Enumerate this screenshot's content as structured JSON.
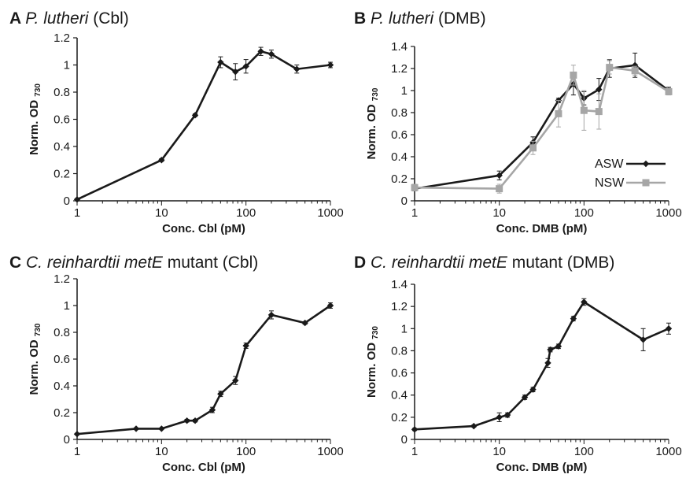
{
  "colors": {
    "asw": "#1a1a1a",
    "nsw": "#a6a6a6",
    "axis": "#1a1a1a"
  },
  "chart_data": [
    {
      "panel_letter": "A",
      "title_parts": [
        {
          "text": "P. lutheri",
          "italic": true
        },
        {
          "text": " (Cbl)",
          "italic": false
        }
      ],
      "type": "line",
      "xscale": "log",
      "xlabel": "Conc. Cbl (pM)",
      "ylabel_main": "Norm. OD",
      "ylabel_sub": "730",
      "xlim": [
        1,
        1000
      ],
      "ylim": [
        0,
        1.2
      ],
      "yticks": [
        "0",
        "0.2",
        "0.4",
        "0.6",
        "0.8",
        "1",
        "1.2"
      ],
      "xticks": [
        "1",
        "10",
        "100",
        "1000"
      ],
      "series": [
        {
          "color_key": "asw",
          "marker": "diamond",
          "x": [
            1,
            10,
            25,
            50,
            75,
            100,
            150,
            200,
            400,
            1000
          ],
          "y": [
            0.01,
            0.3,
            0.63,
            1.02,
            0.95,
            0.99,
            1.1,
            1.08,
            0.97,
            1.0
          ],
          "err": [
            0.005,
            0.01,
            0.01,
            0.04,
            0.06,
            0.05,
            0.03,
            0.03,
            0.03,
            0.02
          ]
        }
      ]
    },
    {
      "panel_letter": "B",
      "title_parts": [
        {
          "text": "P. lutheri",
          "italic": true
        },
        {
          "text": "  (DMB)",
          "italic": false
        }
      ],
      "type": "line",
      "xscale": "log",
      "xlabel": "Conc. DMB (pM)",
      "ylabel_main": "Norm. OD",
      "ylabel_sub": "730",
      "xlim": [
        1,
        1000
      ],
      "ylim": [
        0,
        1.4
      ],
      "yticks": [
        "0",
        "0.2",
        "0.4",
        "0.6",
        "0.8",
        "1",
        "1.2",
        "1.4"
      ],
      "xticks": [
        "1",
        "10",
        "100",
        "1000"
      ],
      "legend": {
        "position": "lower-right"
      },
      "series": [
        {
          "name": "ASW",
          "color_key": "asw",
          "marker": "diamond",
          "x": [
            1,
            10,
            25,
            50,
            75,
            100,
            150,
            200,
            400,
            1000
          ],
          "y": [
            0.11,
            0.23,
            0.53,
            0.91,
            1.06,
            0.93,
            1.01,
            1.2,
            1.23,
            1.0
          ],
          "err": [
            0.02,
            0.04,
            0.05,
            0.02,
            0.1,
            0.06,
            0.1,
            0.08,
            0.11,
            0.03
          ]
        },
        {
          "name": "NSW",
          "color_key": "nsw",
          "marker": "square",
          "x": [
            1,
            10,
            25,
            50,
            75,
            100,
            150,
            200,
            400,
            1000
          ],
          "y": [
            0.12,
            0.11,
            0.48,
            0.79,
            1.14,
            0.82,
            0.81,
            1.21,
            1.18,
            0.99
          ],
          "err": [
            0.03,
            0.04,
            0.06,
            0.12,
            0.09,
            0.18,
            0.16,
            0.06,
            0.04,
            0.03
          ]
        }
      ]
    },
    {
      "panel_letter": "C",
      "title_parts": [
        {
          "text": "C. reinhardtii metE",
          "italic": true
        },
        {
          "text": " mutant (Cbl)",
          "italic": false
        }
      ],
      "type": "line",
      "xscale": "log",
      "xlabel": "Conc. Cbl (pM)",
      "ylabel_main": "Norm. OD",
      "ylabel_sub": "730",
      "xlim": [
        1,
        1000
      ],
      "ylim": [
        0,
        1.2
      ],
      "yticks": [
        "0",
        "0.2",
        "0.4",
        "0.6",
        "0.8",
        "1",
        "1.2"
      ],
      "xticks": [
        "1",
        "10",
        "100",
        "1000"
      ],
      "series": [
        {
          "color_key": "asw",
          "marker": "diamond",
          "x": [
            1,
            5,
            10,
            20,
            25,
            40,
            50,
            75,
            100,
            200,
            500,
            1000
          ],
          "y": [
            0.04,
            0.08,
            0.08,
            0.14,
            0.14,
            0.22,
            0.34,
            0.44,
            0.7,
            0.93,
            0.87,
            1.0
          ],
          "err": [
            0.005,
            0.005,
            0.005,
            0.01,
            0.01,
            0.02,
            0.02,
            0.03,
            0.02,
            0.03,
            0.01,
            0.02
          ]
        }
      ]
    },
    {
      "panel_letter": "D",
      "title_parts": [
        {
          "text": "C. reinhardtii metE",
          "italic": true
        },
        {
          "text": " mutant  (DMB)",
          "italic": false
        }
      ],
      "type": "line",
      "xscale": "log",
      "xlabel": "Conc. DMB (pM)",
      "ylabel_main": "Norm. OD",
      "ylabel_sub": "730",
      "xlim": [
        1,
        1000
      ],
      "ylim": [
        0,
        1.4
      ],
      "yticks": [
        "0",
        "0.2",
        "0.4",
        "0.6",
        "0.8",
        "1",
        "1.2",
        "1.4"
      ],
      "xticks": [
        "1",
        "10",
        "100",
        "1000"
      ],
      "series": [
        {
          "color_key": "asw",
          "marker": "diamond",
          "x": [
            1,
            5,
            10,
            12.5,
            20,
            25,
            37.5,
            40,
            50,
            75,
            100,
            500,
            1000
          ],
          "y": [
            0.09,
            0.12,
            0.2,
            0.22,
            0.38,
            0.45,
            0.69,
            0.81,
            0.84,
            1.09,
            1.24,
            0.9,
            1.0
          ],
          "err": [
            0.01,
            0.01,
            0.04,
            0.02,
            0.02,
            0.02,
            0.04,
            0.02,
            0.02,
            0.02,
            0.03,
            0.1,
            0.05
          ]
        }
      ]
    }
  ]
}
